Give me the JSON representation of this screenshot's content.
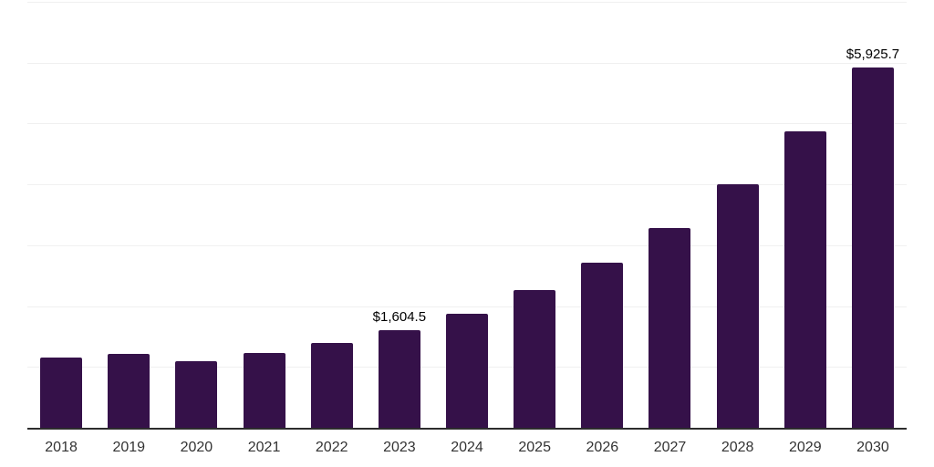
{
  "chart_data": {
    "type": "bar",
    "title": "",
    "xlabel": "",
    "ylabel": "",
    "categories": [
      "2018",
      "2019",
      "2020",
      "2021",
      "2022",
      "2023",
      "2024",
      "2025",
      "2026",
      "2027",
      "2028",
      "2029",
      "2030"
    ],
    "values": [
      1150,
      1220,
      1100,
      1230,
      1400,
      1604.5,
      1880,
      2270,
      2715,
      3285,
      4000,
      4865,
      5925.7
    ],
    "value_labels": [
      "",
      "",
      "",
      "",
      "",
      "$1,604.5",
      "",
      "",
      "",
      "",
      "",
      "",
      "$5,925.7"
    ],
    "ylim": [
      0,
      7000
    ],
    "grid": {
      "horizontal": true,
      "step": 1000,
      "y_tick_labels_visible": false
    },
    "legend": "none",
    "colors": {
      "bar": "#351149",
      "gridline": "#f0f0f0",
      "axis_line": "#2d2d2d",
      "tick_label": "#333333",
      "value_label": "#000000",
      "background": "#ffffff"
    }
  }
}
